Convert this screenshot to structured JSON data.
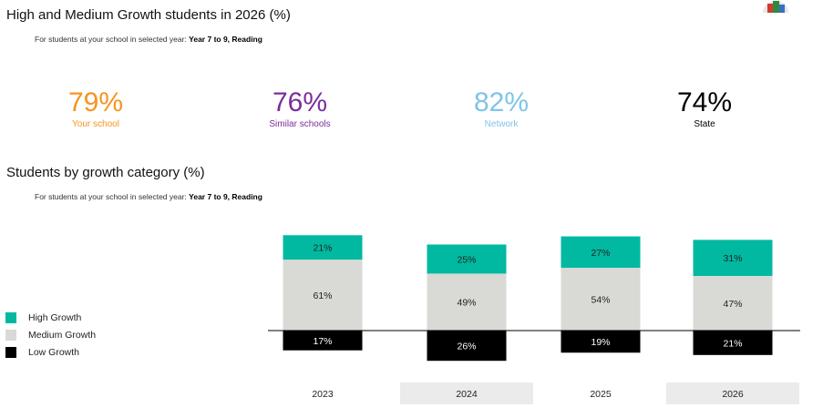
{
  "header": {
    "title": "High and Medium Growth students in 2026 (%)",
    "subtitle_prefix": "For students at your school in selected year: ",
    "subtitle_bold": "Year 7 to 9, Reading"
  },
  "kpis": [
    {
      "value": "79%",
      "label": "Your school",
      "color": "#f7931e"
    },
    {
      "value": "76%",
      "label": "Similar schools",
      "color": "#7b2d9b"
    },
    {
      "value": "82%",
      "label": "Network",
      "color": "#7fc4e8"
    },
    {
      "value": "74%",
      "label": "State",
      "color": "#000000"
    }
  ],
  "section2": {
    "title": "Students by growth category (%)",
    "subtitle_prefix": "For students at your school in selected year: ",
    "subtitle_bold": "Year 7 to 9, Reading"
  },
  "chart_data": {
    "type": "bar",
    "stacked": "diverging",
    "categories": [
      "2023",
      "2024",
      "2025",
      "2026"
    ],
    "series": [
      {
        "name": "High Growth",
        "color": "#00b9a0",
        "values": [
          21,
          25,
          27,
          31
        ],
        "labels": [
          "21%",
          "25%",
          "27%",
          "31%"
        ]
      },
      {
        "name": "Medium Growth",
        "color": "#d9d9d6",
        "values": [
          61,
          49,
          54,
          47
        ],
        "labels": [
          "61%",
          "49%",
          "54%",
          "47%"
        ]
      },
      {
        "name": "Low Growth",
        "color": "#000000",
        "values": [
          17,
          26,
          19,
          21
        ],
        "labels": [
          "17%",
          "26%",
          "19%",
          "21%"
        ]
      }
    ],
    "legend_position": "left",
    "grid": false
  }
}
